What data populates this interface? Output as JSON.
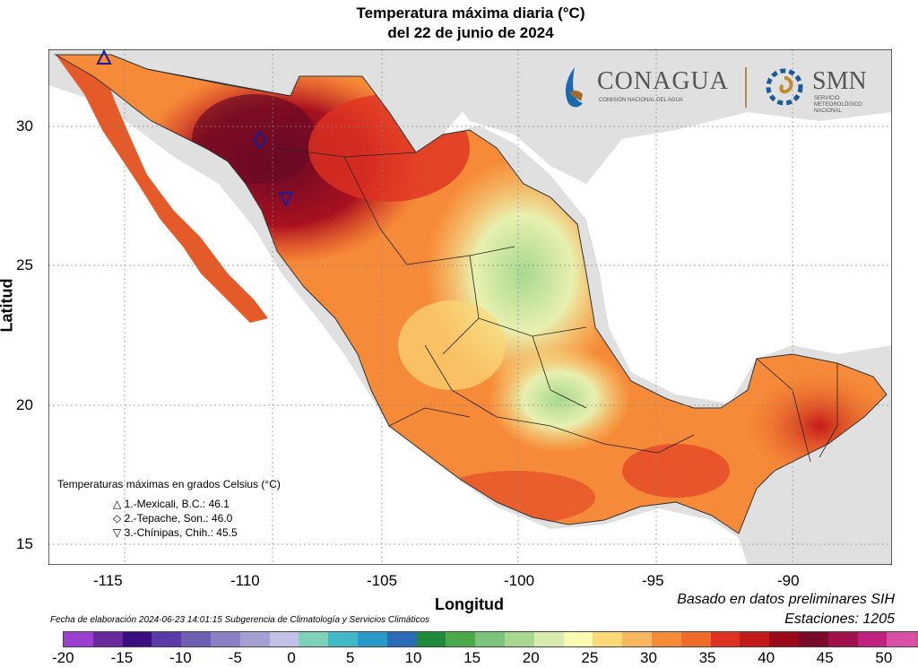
{
  "title_line1": "Temperatura máxima diaria (°C)",
  "title_line2": "del 22 de junio de 2024",
  "axis": {
    "ylabel": "Latitud",
    "xlabel": "Longitud",
    "yticks": [
      "30",
      "25",
      "20",
      "15"
    ],
    "xticks": [
      "-115",
      "-110",
      "-105",
      "-100",
      "-95",
      "-90"
    ]
  },
  "logos": {
    "conagua_name": "CONAGUA",
    "conagua_sub": "COMISIÓN NACIONAL DEL AGUA",
    "smn_name": "SMN",
    "smn_sub1": "SERVICIO",
    "smn_sub2": "METEOROLÓGICO",
    "smn_sub3": "NACIONAL"
  },
  "legend": {
    "title": "Temperaturas máximas en grados Celsius (°C)",
    "items": [
      {
        "symbol": "△",
        "text": "1.-Mexicali, B.C.: 46.1"
      },
      {
        "symbol": "◇",
        "text": "2.-Tepache, Son.: 46.0"
      },
      {
        "symbol": "▽",
        "text": "3.-Chínipas, Chih.: 45.5"
      }
    ]
  },
  "notes": {
    "basis": "Basado en datos preliminares SIH",
    "stations": "Estaciones:  1205",
    "fecha": "Fecha de elaboración 2024-06-23 14:01:15 Subgerencia de Climatología y Servicios Climáticos"
  },
  "colorbar": {
    "labels": [
      "-20",
      "-15",
      "-10",
      "-5",
      "0",
      "5",
      "10",
      "15",
      "20",
      "25",
      "30",
      "35",
      "40",
      "45",
      "50"
    ],
    "colors": [
      "#9b3fd0",
      "#6a2a9e",
      "#3b0f80",
      "#5a3aa6",
      "#6e5fb5",
      "#8a80c4",
      "#a5a0d4",
      "#c2c0e6",
      "#7fd0b8",
      "#40b8c8",
      "#2a98c8",
      "#2a6ab8",
      "#1f8a3a",
      "#4aaa4a",
      "#7cc47a",
      "#a8d890",
      "#d8ecb0",
      "#fafab0",
      "#fbd878",
      "#f9b660",
      "#f58a38",
      "#f06a2a",
      "#e03222",
      "#c41a1a",
      "#9a0a1a",
      "#7a0a2a",
      "#a0104a",
      "#c02080",
      "#d850a8",
      "#d44898"
    ]
  }
}
